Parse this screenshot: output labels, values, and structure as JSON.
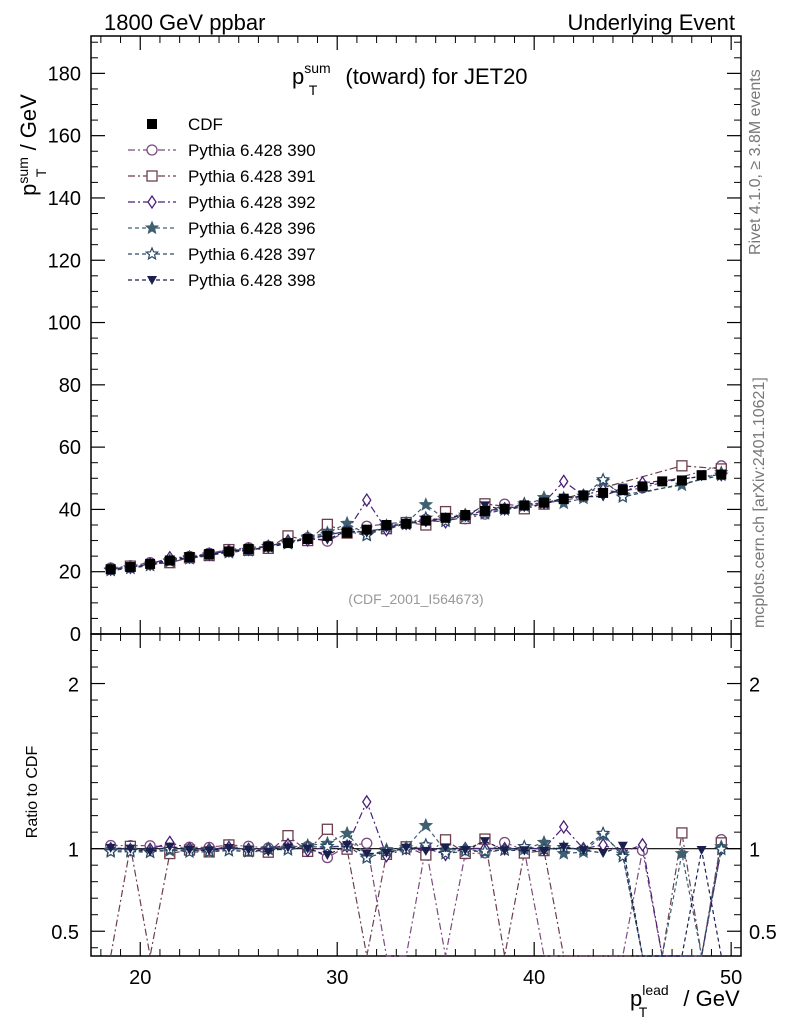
{
  "header": {
    "left": "1800 GeV ppbar",
    "right": "Underlying Event"
  },
  "side_labels": {
    "rivet": "Rivet 4.1.0, ≥ 3.8M events",
    "mcplots": "mcplots.cern.ch [arXiv:2401.10621]"
  },
  "chart_data": [
    {
      "type": "scatter",
      "panel": "main",
      "title_main": "p",
      "title_sup": "sum",
      "title_sub": "T",
      "title_rest": " (toward) for JET20",
      "ylabel_main": "p",
      "ylabel_sup": "sum",
      "ylabel_sub": "T",
      "ylabel_rest": " / GeV",
      "xlim": [
        17.5,
        50.5
      ],
      "ylim": [
        0,
        192
      ],
      "yticks": [
        0,
        20,
        40,
        60,
        80,
        100,
        120,
        140,
        160,
        180
      ],
      "tick_labels": [
        "0",
        "20",
        "40",
        "60",
        "80",
        "100",
        "120",
        "140",
        "160",
        "180"
      ],
      "annotation": "(CDF_2001_I564673)",
      "legend_position": "top-left",
      "x": [
        18.5,
        19.5,
        20.5,
        21.5,
        22.5,
        23.5,
        24.5,
        25.5,
        26.5,
        27.5,
        28.5,
        29.5,
        30.5,
        31.5,
        32.5,
        33.5,
        34.5,
        35.5,
        36.5,
        37.5,
        38.5,
        39.5,
        40.5,
        41.5,
        42.5,
        43.5,
        44.5,
        45.5,
        46.5,
        47.5,
        48.5,
        49.5
      ],
      "series": [
        {
          "name": "CDF",
          "color": "#000000",
          "marker": "filled-square",
          "dash": "none",
          "values": [
            20.8,
            21.5,
            22.5,
            23.6,
            24.7,
            25.7,
            26.5,
            27.3,
            28.1,
            29.2,
            30.5,
            31.5,
            32.5,
            33.5,
            35.0,
            35.4,
            36.4,
            37.3,
            38.2,
            39.5,
            40.2,
            41.3,
            42.2,
            43.3,
            44.5,
            45.3,
            46.2,
            47.4,
            49.0,
            49.3,
            51.0,
            51.2
          ]
        },
        {
          "name": "Pythia 6.428 390",
          "color": "#7b4a80",
          "marker": "open-circle",
          "dash": "7 3 2 3",
          "values": [
            21.2,
            21.9,
            22.9,
            23.8,
            24.9,
            25.9,
            27.1,
            27.7,
            28.2,
            29.6,
            30.9,
            29.8,
            33.0,
            34.6,
            null,
            null,
            36.8,
            null,
            37.0,
            38.5,
            41.7,
            41.0,
            null,
            null,
            null,
            null,
            null,
            46.9,
            null,
            null,
            null,
            54.0
          ]
        },
        {
          "name": "Pythia 6.428 391",
          "color": "#6b3f4c",
          "marker": "open-square",
          "dash": "7 3 2 3",
          "values": [
            null,
            21.8,
            null,
            22.9,
            24.5,
            25.2,
            27.1,
            26.9,
            27.5,
            31.5,
            30.0,
            35.2,
            32.4,
            null,
            33.8,
            35.8,
            35.0,
            39.3,
            37.1,
            41.8,
            null,
            40.2,
            41.7,
            null,
            null,
            null,
            null,
            null,
            null,
            54.0,
            null,
            53.0
          ]
        },
        {
          "name": "Pythia 6.428 392",
          "color": "#4a1f78",
          "marker": "open-diamond",
          "dash": "7 3 2 3",
          "values": [
            20.8,
            21.4,
            22.4,
            24.5,
            24.7,
            25.6,
            26.7,
            27.2,
            28.1,
            29.9,
            30.2,
            31.8,
            33.0,
            43.0,
            33.5,
            35.5,
            36.5,
            36.0,
            38.2,
            39.6,
            40.2,
            41.4,
            42.2,
            49.0,
            44.5,
            46.3,
            45.3,
            48.5,
            null,
            null,
            null,
            51.2
          ]
        },
        {
          "name": "Pythia 6.428 396",
          "color": "#3e6070",
          "marker": "filled-star",
          "dash": "4 3",
          "values": [
            20.6,
            21.3,
            22.1,
            23.3,
            24.5,
            25.5,
            26.2,
            26.9,
            28.1,
            29.3,
            31.1,
            32.5,
            35.5,
            32.0,
            34.8,
            35.6,
            41.5,
            36.8,
            38.2,
            38.6,
            39.9,
            41.1,
            43.8,
            42.0,
            43.6,
            49.0,
            44.7,
            null,
            null,
            47.8,
            null,
            51.8
          ]
        },
        {
          "name": "Pythia 6.428 397",
          "color": "#2b4a66",
          "marker": "open-star",
          "dash": "4 3",
          "values": [
            20.4,
            21.1,
            22.0,
            23.5,
            24.2,
            25.2,
            26.2,
            26.8,
            28.0,
            29.0,
            30.8,
            31.9,
            33.0,
            31.6,
            34.4,
            35.2,
            37.2,
            36.2,
            37.6,
            38.9,
            39.9,
            41.8,
            42.0,
            43.6,
            44.3,
            49.5,
            44.0,
            null,
            null,
            null,
            null,
            51.0
          ]
        },
        {
          "name": "Pythia 6.428 398",
          "color": "#1b1f4f",
          "marker": "filled-triangle-down",
          "dash": "4 3",
          "values": [
            20.9,
            21.5,
            22.1,
            23.9,
            24.5,
            25.4,
            26.6,
            27.1,
            27.6,
            29.4,
            30.5,
            30.3,
            33.2,
            32.5,
            34.1,
            35.6,
            35.9,
            37.6,
            37.9,
            41.3,
            39.8,
            40.9,
            41.6,
            43.8,
            44.1,
            44.1,
            47.0,
            null,
            null,
            null,
            50.6,
            null
          ]
        }
      ]
    },
    {
      "type": "scatter",
      "panel": "ratio",
      "ylabel": "Ratio to CDF",
      "xlabel_main": "p",
      "xlabel_sup": "lead",
      "xlabel_sub": "T",
      "xlabel_rest": " / GeV",
      "xlim": [
        17.5,
        50.5
      ],
      "ylim": [
        0.35,
        2.3
      ],
      "xticks": [
        20,
        30,
        40,
        50
      ],
      "xtick_labels": [
        "20",
        "30",
        "40",
        "50"
      ],
      "yticks": [
        0.5,
        1,
        2
      ],
      "ytick_labels": [
        "0.5",
        "1",
        "2"
      ]
    }
  ]
}
